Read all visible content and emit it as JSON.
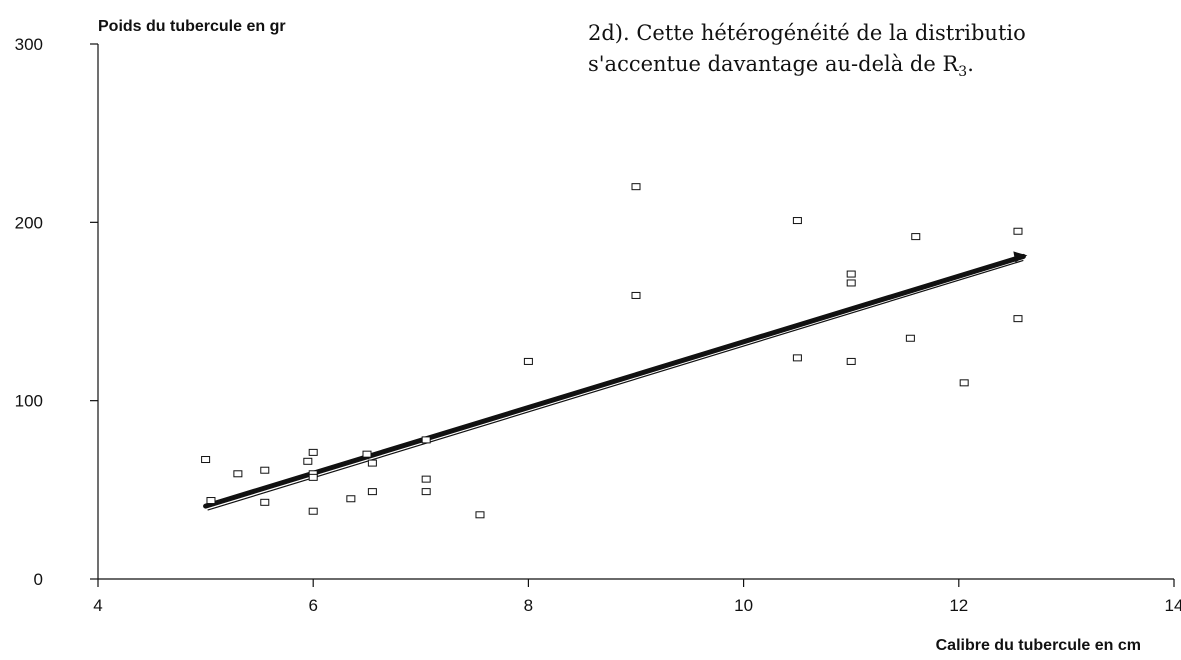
{
  "text_fragment": {
    "line1": "2d). Cette hétérogénéité de la distributio",
    "line2_prefix": "s'accentue davantage au-delà de R",
    "line2_sub": "3",
    "line2_suffix": "."
  },
  "chart_data": {
    "type": "scatter",
    "title": "",
    "xlabel": "Calibre  du  tubercule en cm",
    "ylabel": "Poids du  tubercule en gr",
    "xlim": [
      4,
      14
    ],
    "ylim": [
      0,
      300
    ],
    "x_ticks": [
      "4",
      "6",
      "8",
      "10",
      "12",
      "14"
    ],
    "y_ticks": [
      "0",
      "100",
      "200",
      "300"
    ],
    "x_tick_values": [
      4,
      6,
      8,
      10,
      12,
      14
    ],
    "y_tick_values": [
      0,
      100,
      200,
      300
    ],
    "grid": false,
    "series": [
      {
        "kind": "points",
        "marker": "open-square",
        "points": [
          [
            5.0,
            67
          ],
          [
            5.05,
            44
          ],
          [
            5.3,
            59
          ],
          [
            5.55,
            61
          ],
          [
            5.55,
            43
          ],
          [
            5.95,
            66
          ],
          [
            6.0,
            71
          ],
          [
            6.0,
            59
          ],
          [
            6.0,
            57
          ],
          [
            6.0,
            38
          ],
          [
            6.35,
            45
          ],
          [
            6.5,
            70
          ],
          [
            6.55,
            65
          ],
          [
            6.55,
            49
          ],
          [
            7.05,
            78
          ],
          [
            7.05,
            56
          ],
          [
            7.05,
            49
          ],
          [
            7.55,
            36
          ],
          [
            8.0,
            122
          ],
          [
            9.0,
            220
          ],
          [
            9.0,
            159
          ],
          [
            10.5,
            201
          ],
          [
            10.5,
            124
          ],
          [
            11.0,
            171
          ],
          [
            11.0,
            166
          ],
          [
            11.0,
            122
          ],
          [
            11.55,
            135
          ],
          [
            11.6,
            192
          ],
          [
            12.05,
            110
          ],
          [
            12.55,
            195
          ],
          [
            12.55,
            146
          ]
        ]
      },
      {
        "kind": "trend-line",
        "points": [
          [
            5.0,
            42
          ],
          [
            12.6,
            182
          ]
        ]
      }
    ]
  }
}
